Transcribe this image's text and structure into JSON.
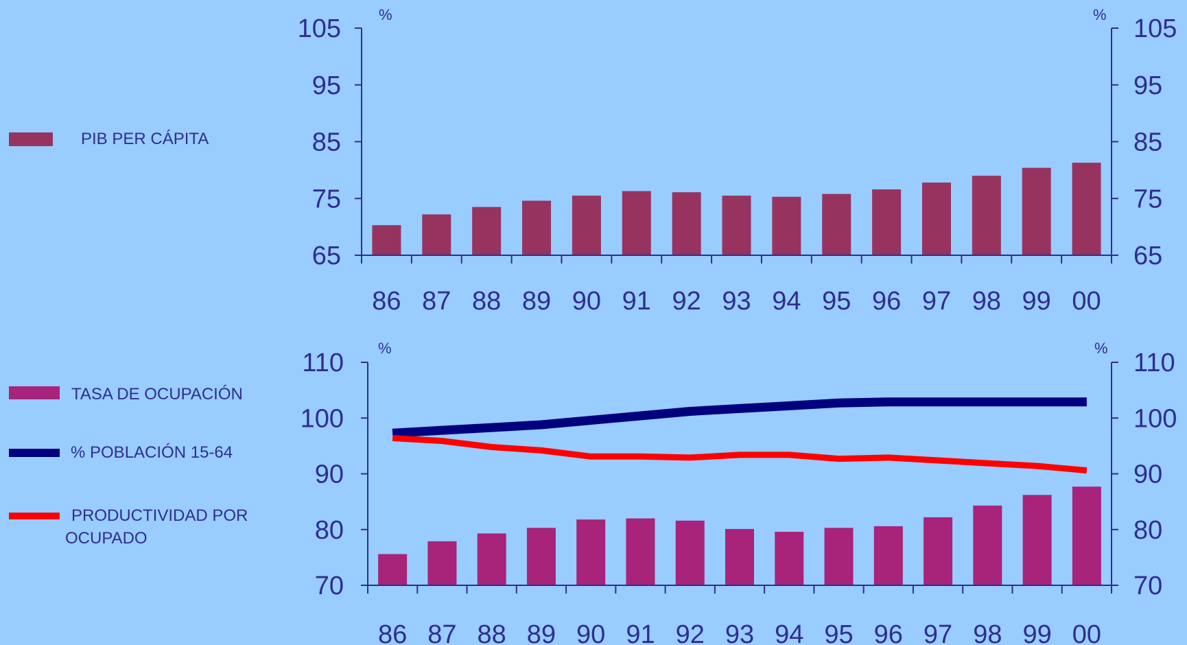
{
  "chart_data": [
    {
      "type": "bar",
      "categories": [
        "86",
        "87",
        "88",
        "89",
        "90",
        "91",
        "92",
        "93",
        "94",
        "95",
        "96",
        "97",
        "98",
        "99",
        "00"
      ],
      "unit_label_left": "%",
      "unit_label_right": "%",
      "yticks": [
        "65",
        "75",
        "85",
        "95",
        "105"
      ],
      "ylim": [
        65,
        105
      ],
      "series": [
        {
          "name": "PIB PER CÁPITA",
          "type": "bar",
          "color": "#96345f",
          "values": [
            70.3,
            72.2,
            73.5,
            74.6,
            75.5,
            76.3,
            76.1,
            75.5,
            75.3,
            75.8,
            76.6,
            77.8,
            79.0,
            80.4,
            81.3
          ]
        }
      ],
      "grid": false,
      "legend_placement": "left"
    },
    {
      "type": "bar",
      "categories": [
        "86",
        "87",
        "88",
        "89",
        "90",
        "91",
        "92",
        "93",
        "94",
        "95",
        "96",
        "97",
        "98",
        "99",
        "00"
      ],
      "unit_label_left": "%",
      "unit_label_right": "%",
      "yticks": [
        "70",
        "80",
        "90",
        "100",
        "110"
      ],
      "ylim": [
        70,
        110
      ],
      "series": [
        {
          "name": "TASA DE OCUPACIÓN",
          "type": "bar",
          "color": "#a8237a",
          "values": [
            75.6,
            77.9,
            79.3,
            80.3,
            81.8,
            82.0,
            81.6,
            80.1,
            79.6,
            80.3,
            80.6,
            82.2,
            84.3,
            86.2,
            87.7
          ]
        },
        {
          "name": "% POBLACIÓN 15-64",
          "type": "line",
          "color": "#00007f",
          "values": [
            97.3,
            97.8,
            98.3,
            98.8,
            99.6,
            100.4,
            101.2,
            101.7,
            102.2,
            102.7,
            102.9,
            102.9,
            102.9,
            102.9,
            102.9
          ]
        },
        {
          "name": "PRODUCTIVIDAD POR OCUPADO",
          "type": "line",
          "color": "#ff0000",
          "values": [
            96.4,
            95.9,
            94.8,
            94.2,
            93.1,
            93.1,
            92.9,
            93.4,
            93.4,
            92.7,
            92.9,
            92.4,
            91.9,
            91.4,
            90.6
          ]
        }
      ],
      "grid": false,
      "legend_placement": "left"
    }
  ],
  "legend": {
    "top": [
      {
        "label": "PIB PER CÁPITA",
        "color": "#96345f"
      }
    ],
    "bottom": [
      {
        "label": "TASA DE OCUPACIÓN",
        "color": "#a8237a"
      },
      {
        "label": "% POBLACIÓN 15-64",
        "color": "#00007f"
      },
      {
        "label": "PRODUCTIVIDAD POR",
        "label2": "OCUPADO",
        "color": "#ff0000"
      }
    ]
  },
  "colors": {
    "background": "#99ccff",
    "axis": "#2e2e8f",
    "text": "#2e2e8f"
  }
}
